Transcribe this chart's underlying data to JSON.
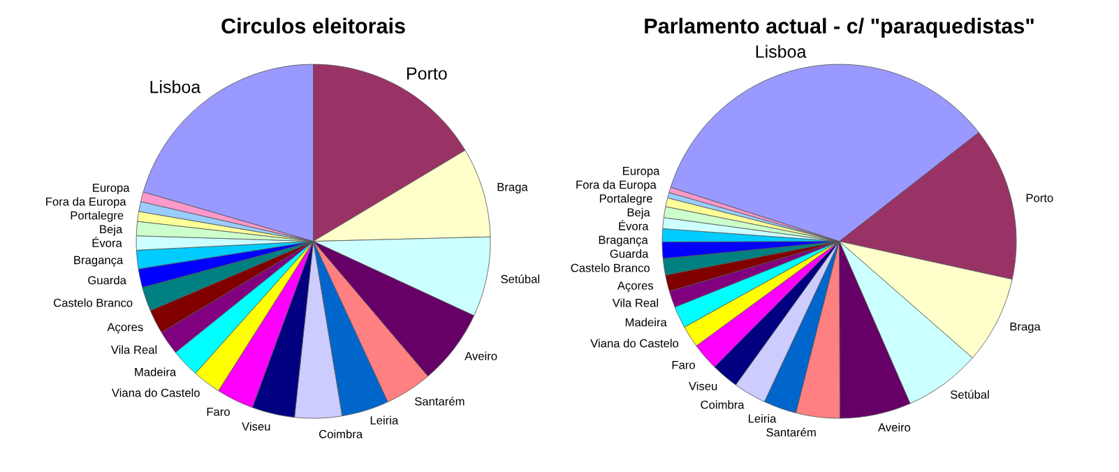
{
  "chart_data": [
    {
      "type": "pie",
      "title": "Circulos eleitorais",
      "categories": [
        "Porto",
        "Braga",
        "Setúbal",
        "Aveiro",
        "Santarém",
        "Leiria",
        "Coimbra",
        "Viseu",
        "Faro",
        "Viana do Castelo",
        "Madeira",
        "Vila Real",
        "Açores",
        "Castelo Branco",
        "Guarda",
        "Bragança",
        "Évora",
        "Beja",
        "Portalegre",
        "Fora da Europa",
        "Europa",
        "Lisboa"
      ],
      "values": [
        16.4,
        8.2,
        7.3,
        6.9,
        4.3,
        4.3,
        4.3,
        3.9,
        3.4,
        2.6,
        2.6,
        2.2,
        2.2,
        2.2,
        1.7,
        1.7,
        1.3,
        1.3,
        0.9,
        0.9,
        0.9,
        20.5
      ],
      "colors": [
        "#993366",
        "#ffffcc",
        "#ccffff",
        "#660066",
        "#ff8080",
        "#0066cc",
        "#ccccff",
        "#000080",
        "#ff00ff",
        "#ffff00",
        "#00ffff",
        "#800080",
        "#800000",
        "#008080",
        "#0000ff",
        "#00ccff",
        "#ccffff",
        "#ccffcc",
        "#ffff99",
        "#99ccff",
        "#ff99cc",
        "#9999ff"
      ]
    },
    {
      "type": "pie",
      "title": "Parlamento actual - c/ \"paraquedistas\"",
      "categories": [
        "Porto",
        "Braga",
        "Setúbal",
        "Aveiro",
        "Santarém",
        "Leiria",
        "Coimbra",
        "Viseu",
        "Faro",
        "Viana do Castelo",
        "Madeira",
        "Vila Real",
        "Açores",
        "Castelo Branco",
        "Guarda",
        "Bragança",
        "Évora",
        "Beja",
        "Portalegre",
        "Fora da Europa",
        "Europa",
        "Lisboa"
      ],
      "values": [
        14,
        8,
        7,
        6.5,
        4,
        3,
        3,
        2.5,
        2.5,
        2,
        2,
        1.5,
        1.5,
        1.5,
        1.5,
        1.2,
        1,
        1,
        0.8,
        0.5,
        0.5,
        34.5
      ],
      "colors": [
        "#993366",
        "#ffffcc",
        "#ccffff",
        "#660066",
        "#ff8080",
        "#0066cc",
        "#ccccff",
        "#000080",
        "#ff00ff",
        "#ffff00",
        "#00ffff",
        "#800080",
        "#800000",
        "#008080",
        "#0000ff",
        "#00ccff",
        "#ccffff",
        "#ccffcc",
        "#ffff99",
        "#99ccff",
        "#ff99cc",
        "#9999ff"
      ]
    }
  ]
}
